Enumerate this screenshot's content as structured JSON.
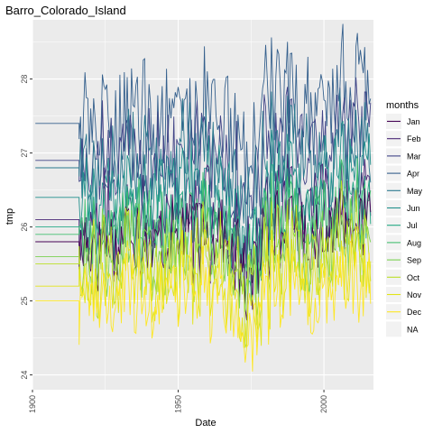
{
  "chart_data": {
    "type": "line",
    "title": "Barro_Colorado_Island",
    "xlabel": "Date",
    "ylabel": "tmp",
    "xlim": [
      1900,
      2017
    ],
    "ylim": [
      23.8,
      28.8
    ],
    "x_ticks": [
      1900,
      1950,
      2000
    ],
    "y_ticks": [
      24,
      25,
      26,
      27,
      28
    ],
    "grid": true,
    "legend": {
      "title": "months",
      "position": "right"
    },
    "series": [
      {
        "name": "Jan",
        "color": "#440154",
        "base": 25.8,
        "amp": 0.5,
        "noise": 0.32,
        "trend": 0.15
      },
      {
        "name": "Feb",
        "color": "#482576",
        "base": 26.1,
        "amp": 0.55,
        "noise": 0.35,
        "trend": 0.2
      },
      {
        "name": "Mar",
        "color": "#414487",
        "base": 26.9,
        "amp": 0.6,
        "noise": 0.4,
        "trend": 0.25
      },
      {
        "name": "Apr",
        "color": "#35608D",
        "base": 27.4,
        "amp": 0.65,
        "noise": 0.45,
        "trend": 0.3
      },
      {
        "name": "May",
        "color": "#2A788E",
        "base": 26.8,
        "amp": 0.6,
        "noise": 0.4,
        "trend": 0.25
      },
      {
        "name": "Jun",
        "color": "#21908C",
        "base": 26.4,
        "amp": 0.55,
        "noise": 0.36,
        "trend": 0.2
      },
      {
        "name": "Jul",
        "color": "#22A884",
        "base": 26.0,
        "amp": 0.5,
        "noise": 0.34,
        "trend": 0.2
      },
      {
        "name": "Aug",
        "color": "#43BF71",
        "base": 25.9,
        "amp": 0.5,
        "noise": 0.34,
        "trend": 0.2
      },
      {
        "name": "Sep",
        "color": "#7AD151",
        "base": 25.6,
        "amp": 0.5,
        "noise": 0.34,
        "trend": 0.18
      },
      {
        "name": "Oct",
        "color": "#BBDF27",
        "base": 25.5,
        "amp": 0.55,
        "noise": 0.34,
        "trend": 0.18
      },
      {
        "name": "Nov",
        "color": "#E2E418",
        "base": 25.2,
        "amp": 0.5,
        "noise": 0.32,
        "trend": 0.15
      },
      {
        "name": "Dec",
        "color": "#FDE725",
        "base": 25.0,
        "amp": 0.5,
        "noise": 0.32,
        "trend": 0.15
      }
    ],
    "na_label": "NA",
    "na_color": "#7F7F7F"
  }
}
